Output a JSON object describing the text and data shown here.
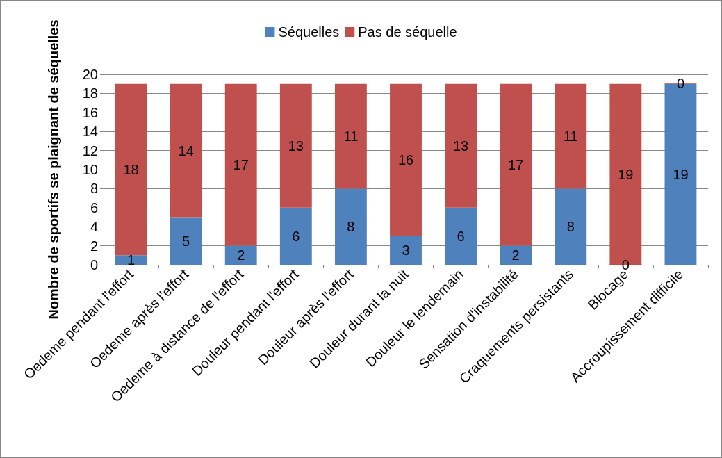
{
  "chart_data": {
    "type": "bar",
    "ylabel": "Nombre de sportifs se plaignant de séquelles",
    "categories": [
      "Oedeme pendant l'effort",
      "Oedeme après l'effort",
      "Oedeme à distance de l'effort",
      "Douleur pendant l'effort",
      "Douleur après l'effort",
      "Douleur durant la nuit",
      "Douleur le lendemain",
      "Sensation d'instabilité",
      "Craquements persistants",
      "Blocage",
      "Accroupissement difficile"
    ],
    "series": [
      {
        "name": "Séquelles",
        "color": "#4f81bd",
        "values": [
          1,
          5,
          2,
          6,
          8,
          3,
          6,
          2,
          8,
          0,
          19
        ]
      },
      {
        "name": "Pas de séquelle",
        "color": "#c0504d",
        "values": [
          18,
          14,
          17,
          13,
          11,
          16,
          13,
          17,
          11,
          19,
          0
        ]
      }
    ],
    "stacked": true,
    "data_labels": true,
    "ylim": [
      0,
      20
    ],
    "yticks": [
      0,
      2,
      4,
      6,
      8,
      10,
      12,
      14,
      16,
      18,
      20
    ],
    "grid": "y",
    "legend": "top"
  }
}
